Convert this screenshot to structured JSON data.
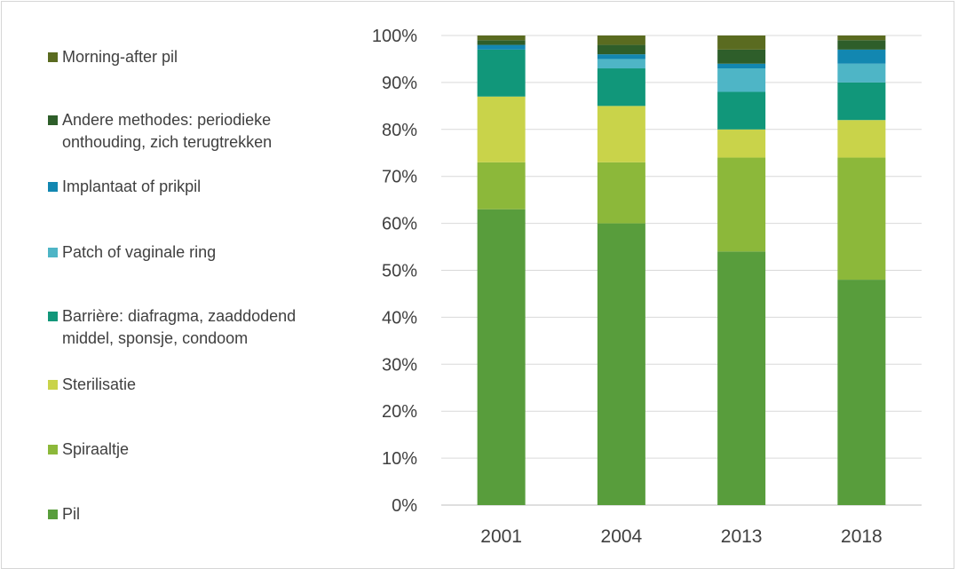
{
  "chart_data": {
    "type": "bar",
    "stacked": true,
    "categories": [
      "2001",
      "2004",
      "2013",
      "2018"
    ],
    "yticks": [
      "0%",
      "10%",
      "20%",
      "30%",
      "40%",
      "50%",
      "60%",
      "70%",
      "80%",
      "90%",
      "100%"
    ],
    "ylim": [
      0,
      100
    ],
    "grid": true,
    "legend_position": "left",
    "series": [
      {
        "name": "Pil",
        "color": "#589d3c",
        "values": [
          63,
          60,
          54,
          48
        ]
      },
      {
        "name": "Spiraaltje",
        "color": "#8cb83a",
        "values": [
          10,
          13,
          20,
          26
        ]
      },
      {
        "name": "Sterilisatie",
        "color": "#c9d34a",
        "values": [
          14,
          12,
          6,
          8
        ]
      },
      {
        "name": "Barrière: diafragma, zaaddodend middel, sponsje, condoom",
        "color": "#11977a",
        "values": [
          10,
          8,
          8,
          8
        ]
      },
      {
        "name": "Patch of vaginale ring",
        "color": "#4eb5c6",
        "values": [
          0,
          2,
          5,
          4
        ]
      },
      {
        "name": "Implantaat of prikpil",
        "color": "#1287b1",
        "values": [
          1,
          1,
          1,
          3
        ]
      },
      {
        "name": "Andere methodes: periodieke onthouding, zich terugtrekken",
        "color": "#2e5e2a",
        "values": [
          1,
          2,
          3,
          2
        ]
      },
      {
        "name": "Morning-after pil",
        "color": "#5a6b20",
        "values": [
          1,
          2,
          3,
          1
        ]
      }
    ]
  },
  "legend": [
    {
      "lines": [
        "Morning-after pil"
      ],
      "color": "#5a6b20"
    },
    {
      "lines": [
        "Andere methodes: periodieke",
        "onthouding, zich terugtrekken"
      ],
      "color": "#2e5e2a"
    },
    {
      "lines": [
        "Implantaat of prikpil"
      ],
      "color": "#1287b1"
    },
    {
      "lines": [
        "Patch of vaginale ring"
      ],
      "color": "#4eb5c6"
    },
    {
      "lines": [
        "Barrière: diafragma, zaaddodend",
        "middel, sponsje, condoom"
      ],
      "color": "#11977a"
    },
    {
      "lines": [
        "Sterilisatie"
      ],
      "color": "#c9d34a"
    },
    {
      "lines": [
        "Spiraaltje"
      ],
      "color": "#8cb83a"
    },
    {
      "lines": [
        "Pil"
      ],
      "color": "#589d3c"
    }
  ]
}
